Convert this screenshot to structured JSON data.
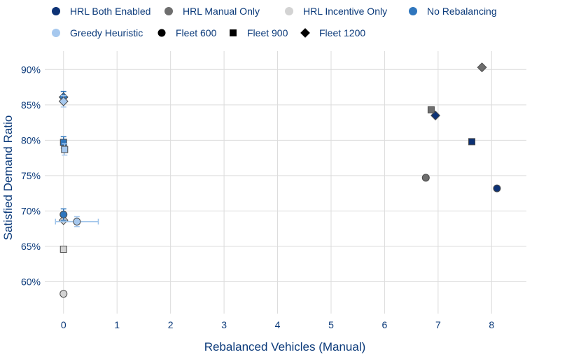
{
  "chart_data": {
    "type": "scatter",
    "xlabel": "Rebalanced Vehicles (Manual)",
    "ylabel": "Satisfied Demand Ratio",
    "xlim": [
      -0.35,
      8.65
    ],
    "ylim": [
      0.555,
      0.926
    ],
    "x_ticks": [
      0,
      1,
      2,
      3,
      4,
      5,
      6,
      7,
      8
    ],
    "x_tick_labels": [
      "0",
      "1",
      "2",
      "3",
      "4",
      "5",
      "6",
      "7",
      "8"
    ],
    "y_ticks": [
      0.6,
      0.65,
      0.7,
      0.75,
      0.8,
      0.85,
      0.9
    ],
    "y_tick_labels": [
      "60%",
      "65%",
      "70%",
      "75%",
      "80%",
      "85%",
      "90%"
    ],
    "grid": true,
    "legend_position": "top",
    "colors": {
      "text": "#0b3a7a",
      "grid": "#dcdcdc",
      "error_bar": "#9dc3ea"
    },
    "legend": [
      {
        "label": "HRL Both Enabled",
        "kind": "color",
        "color": "#0d3275"
      },
      {
        "label": "HRL Manual Only",
        "kind": "color",
        "color": "#6e6e6e"
      },
      {
        "label": "HRL Incentive Only",
        "kind": "color",
        "color": "#d3d3d3"
      },
      {
        "label": "No Rebalancing",
        "kind": "color",
        "color": "#2f76bd"
      },
      {
        "label": "Greedy Heuristic",
        "kind": "color",
        "color": "#a6c8ee"
      },
      {
        "label": "Fleet 600",
        "kind": "shape",
        "shape": "circle"
      },
      {
        "label": "Fleet 900",
        "kind": "shape",
        "shape": "square"
      },
      {
        "label": "Fleet 1200",
        "kind": "shape",
        "shape": "diamond"
      }
    ],
    "series": [
      {
        "name": "HRL Both Enabled",
        "color": "#0d3275",
        "points": [
          {
            "x": 8.1,
            "y": 0.732,
            "shape": "circle"
          },
          {
            "x": 7.63,
            "y": 0.798,
            "shape": "square"
          },
          {
            "x": 6.95,
            "y": 0.835,
            "shape": "diamond"
          }
        ]
      },
      {
        "name": "HRL Manual Only",
        "color": "#6e6e6e",
        "points": [
          {
            "x": 6.77,
            "y": 0.747,
            "shape": "circle"
          },
          {
            "x": 6.87,
            "y": 0.843,
            "shape": "square"
          },
          {
            "x": 7.82,
            "y": 0.903,
            "shape": "diamond"
          }
        ]
      },
      {
        "name": "HRL Incentive Only",
        "color": "#d3d3d3",
        "points": [
          {
            "x": 0.0,
            "y": 0.583,
            "shape": "circle"
          },
          {
            "x": 0.0,
            "y": 0.646,
            "shape": "square"
          },
          {
            "x": 0.0,
            "y": 0.687,
            "shape": "diamond"
          }
        ]
      },
      {
        "name": "No Rebalancing",
        "color": "#2f76bd",
        "points": [
          {
            "x": 0.0,
            "y": 0.695,
            "shape": "circle",
            "yerr": 0.008
          },
          {
            "x": 0.0,
            "y": 0.797,
            "shape": "square",
            "yerr": 0.008
          },
          {
            "x": 0.0,
            "y": 0.861,
            "shape": "diamond",
            "yerr": 0.008
          }
        ]
      },
      {
        "name": "Greedy Heuristic",
        "color": "#a6c8ee",
        "points": [
          {
            "x": 0.25,
            "y": 0.685,
            "shape": "circle",
            "xerr": 0.4,
            "yerr": 0.007
          },
          {
            "x": 0.02,
            "y": 0.787,
            "shape": "square",
            "yerr": 0.008
          },
          {
            "x": 0.0,
            "y": 0.855,
            "shape": "diamond",
            "yerr": 0.008
          }
        ]
      }
    ]
  }
}
